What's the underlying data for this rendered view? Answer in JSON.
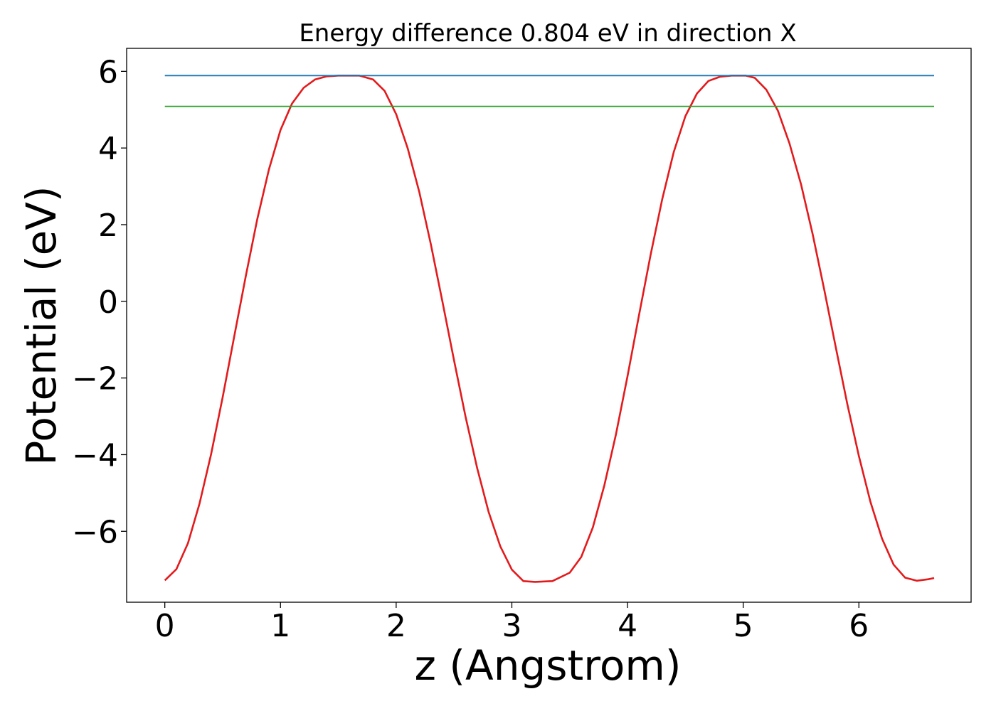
{
  "chart_data": {
    "type": "line",
    "title": "Energy difference 0.804 eV in direction X",
    "xlabel": "z (Angstrom)",
    "ylabel": "Potential (eV)",
    "xlim": [
      -0.33,
      6.97
    ],
    "ylim": [
      -7.85,
      6.6
    ],
    "xticks": [
      0,
      1,
      2,
      3,
      4,
      5,
      6
    ],
    "xtick_labels": [
      "0",
      "1",
      "2",
      "3",
      "4",
      "5",
      "6"
    ],
    "yticks": [
      6,
      4,
      2,
      0,
      -2,
      -4,
      -6
    ],
    "ytick_labels": [
      "6",
      "4",
      "2",
      "0",
      "−2",
      "−4",
      "−6"
    ],
    "grid": false,
    "legend": "none",
    "series": [
      {
        "color": "#e31a1c",
        "x": [
          0.0,
          0.1,
          0.2,
          0.3,
          0.4,
          0.5,
          0.6,
          0.7,
          0.8,
          0.9,
          1.0,
          1.1,
          1.2,
          1.3,
          1.4,
          1.5,
          1.6,
          1.68,
          1.8,
          1.9,
          2.0,
          2.1,
          2.2,
          2.3,
          2.4,
          2.5,
          2.6,
          2.7,
          2.8,
          2.9,
          3.0,
          3.1,
          3.2,
          3.35,
          3.5,
          3.6,
          3.7,
          3.8,
          3.9,
          4.0,
          4.1,
          4.2,
          4.3,
          4.4,
          4.5,
          4.6,
          4.7,
          4.8,
          4.9,
          5.02,
          5.1,
          5.2,
          5.3,
          5.4,
          5.5,
          5.6,
          5.7,
          5.8,
          5.9,
          6.0,
          6.1,
          6.2,
          6.3,
          6.4,
          6.5,
          6.6,
          6.65
        ],
        "y": [
          -7.28,
          -6.99,
          -6.31,
          -5.28,
          -3.99,
          -2.5,
          -0.92,
          0.66,
          2.15,
          3.44,
          4.47,
          5.16,
          5.57,
          5.79,
          5.87,
          5.89,
          5.89,
          5.89,
          5.79,
          5.49,
          4.88,
          3.99,
          2.85,
          1.49,
          -0.01,
          -1.54,
          -3.01,
          -4.35,
          -5.5,
          -6.39,
          -7.0,
          -7.3,
          -7.32,
          -7.3,
          -7.08,
          -6.67,
          -5.9,
          -4.8,
          -3.47,
          -1.95,
          -0.35,
          1.22,
          2.67,
          3.9,
          4.83,
          5.42,
          5.75,
          5.86,
          5.89,
          5.89,
          5.83,
          5.52,
          4.97,
          4.12,
          3.05,
          1.76,
          0.31,
          -1.2,
          -2.68,
          -4.04,
          -5.23,
          -6.19,
          -6.87,
          -7.21,
          -7.29,
          -7.25,
          -7.22
        ]
      },
      {
        "color": "#1f77b4",
        "x": [
          0.0,
          6.65
        ],
        "y": [
          5.89,
          5.89
        ]
      },
      {
        "color": "#2ca02c",
        "x": [
          0.0,
          6.65
        ],
        "y": [
          5.086,
          5.086
        ]
      }
    ]
  }
}
